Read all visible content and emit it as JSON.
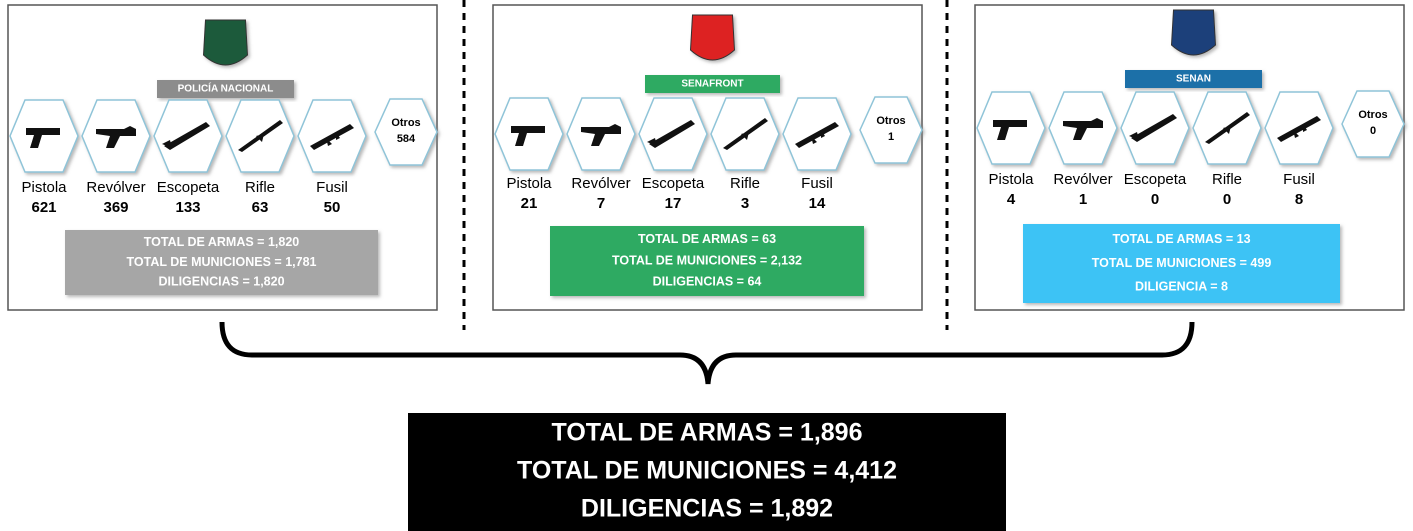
{
  "panels": [
    {
      "badge": "POLICÍA NACIONAL",
      "weapons": [
        {
          "label": "Pistola",
          "count": "621"
        },
        {
          "label": "Revólver",
          "count": "369"
        },
        {
          "label": "Escopeta",
          "count": "133"
        },
        {
          "label": "Rifle",
          "count": "63"
        },
        {
          "label": "Fusil",
          "count": "50"
        }
      ],
      "otros": {
        "label": "Otros",
        "count": "584"
      },
      "summary": [
        "TOTAL DE ARMAS = 1,820",
        "TOTAL DE MUNICIONES = 1,781",
        "DILIGENCIAS = 1,820"
      ]
    },
    {
      "badge": "SENAFRONT",
      "weapons": [
        {
          "label": "Pistola",
          "count": "21"
        },
        {
          "label": "Revólver",
          "count": "7"
        },
        {
          "label": "Escopeta",
          "count": "17"
        },
        {
          "label": "Rifle",
          "count": "3"
        },
        {
          "label": "Fusil",
          "count": "14"
        }
      ],
      "otros": {
        "label": "Otros",
        "count": "1"
      },
      "summary": [
        "TOTAL DE ARMAS = 63",
        "TOTAL DE MUNICIONES = 2,132",
        "DILIGENCIAS = 64"
      ]
    },
    {
      "badge": "SENAN",
      "weapons": [
        {
          "label": "Pistola",
          "count": "4"
        },
        {
          "label": "Revólver",
          "count": "1"
        },
        {
          "label": "Escopeta",
          "count": "0"
        },
        {
          "label": "Rifle",
          "count": "0"
        },
        {
          "label": "Fusil",
          "count": "8"
        }
      ],
      "otros": {
        "label": "Otros",
        "count": "0"
      },
      "summary": [
        "TOTAL DE ARMAS = 13",
        "TOTAL DE MUNICIONES = 499",
        "DILIGENCIA = 8"
      ]
    }
  ],
  "total": [
    "TOTAL DE ARMAS = 1,896",
    "TOTAL DE MUNICIONES = 4,412",
    "DILIGENCIAS = 1,892"
  ]
}
